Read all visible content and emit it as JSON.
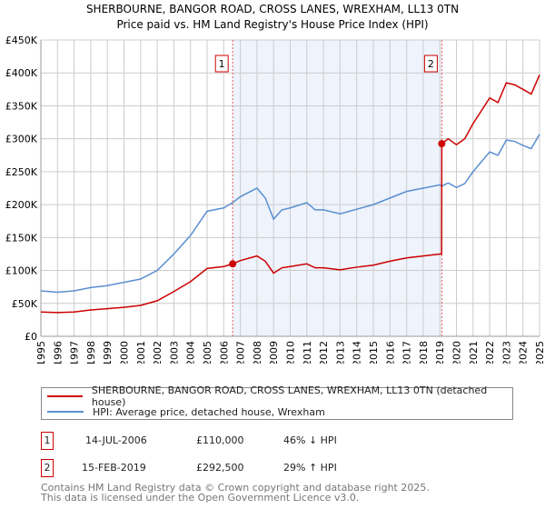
{
  "chart_data": {
    "type": "line",
    "title": "SHERBOURNE, BANGOR ROAD, CROSS LANES, WREXHAM, LL13 0TN",
    "subtitle": "Price paid vs. HM Land Registry's House Price Index (HPI)",
    "xlim": [
      1995,
      2025
    ],
    "ylim": [
      0,
      450000
    ],
    "y_ticks": [
      0,
      50000,
      100000,
      150000,
      200000,
      250000,
      300000,
      350000,
      400000,
      450000
    ],
    "y_tick_labels": [
      "£0",
      "£50K",
      "£100K",
      "£150K",
      "£200K",
      "£250K",
      "£300K",
      "£350K",
      "£400K",
      "£450K"
    ],
    "x_ticks": [
      "1995",
      "1996",
      "1997",
      "1998",
      "1999",
      "2000",
      "2001",
      "2002",
      "2003",
      "2004",
      "2005",
      "2006",
      "2007",
      "2008",
      "2009",
      "2010",
      "2011",
      "2012",
      "2013",
      "2014",
      "2015",
      "2016",
      "2017",
      "2018",
      "2019",
      "2020",
      "2021",
      "2022",
      "2023",
      "2024",
      "2025"
    ],
    "grid": true,
    "shaded_range": [
      2006.54,
      2019.12
    ],
    "series": [
      {
        "name": "SHERBOURNE, BANGOR ROAD, CROSS LANES, WREXHAM, LL13 0TN (detached house)",
        "color": "#cc0000",
        "x": [
          1995,
          1996,
          1997,
          1998,
          1999,
          2000,
          2001,
          2002,
          2003,
          2004,
          2005,
          2006,
          2006.54,
          2007,
          2008,
          2008.5,
          2009,
          2009.5,
          2010,
          2011,
          2011.5,
          2012,
          2013,
          2014,
          2015,
          2016,
          2017,
          2018,
          2019,
          2019.11,
          2019.12,
          2019.5,
          2020,
          2020.5,
          2021,
          2022,
          2022.5,
          2023,
          2023.5,
          2024,
          2024.5,
          2025
        ],
        "y": [
          37000,
          36000,
          37000,
          40000,
          42000,
          44000,
          47000,
          54000,
          68000,
          83000,
          103000,
          106000,
          110000,
          115000,
          122000,
          114000,
          96000,
          104000,
          106000,
          110000,
          104000,
          104000,
          101000,
          105000,
          108000,
          114000,
          119000,
          122000,
          125000,
          125000,
          292500,
          300000,
          291000,
          300000,
          323000,
          362000,
          355000,
          385000,
          382000,
          375000,
          368000,
          397000
        ]
      },
      {
        "name": "HPI: Average price, detached house, Wrexham",
        "color": "#5b8fd0",
        "x": [
          1995,
          1996,
          1997,
          1998,
          1999,
          2000,
          2001,
          2002,
          2003,
          2004,
          2005,
          2006,
          2006.54,
          2007,
          2008,
          2008.5,
          2009,
          2009.5,
          2010,
          2011,
          2011.5,
          2012,
          2013,
          2014,
          2015,
          2016,
          2017,
          2018,
          2019,
          2019.12,
          2019.5,
          2020,
          2020.5,
          2021,
          2022,
          2022.5,
          2023,
          2023.5,
          2024,
          2024.5,
          2025
        ],
        "y": [
          69000,
          67000,
          69000,
          74000,
          77000,
          82000,
          87000,
          100000,
          125000,
          153000,
          190000,
          195000,
          203000,
          212000,
          225000,
          210000,
          178000,
          192000,
          195000,
          203000,
          192000,
          192000,
          186000,
          193000,
          200000,
          210000,
          220000,
          225000,
          230000,
          228000,
          233000,
          226000,
          232000,
          250000,
          280000,
          275000,
          298000,
          296000,
          290000,
          285000,
          307000
        ]
      }
    ],
    "annotations": [
      {
        "label": "1",
        "x": 2006.54,
        "y": 110000
      },
      {
        "label": "2",
        "x": 2019.12,
        "y": 292500
      }
    ]
  },
  "legend": {
    "red": "SHERBOURNE, BANGOR ROAD, CROSS LANES, WREXHAM, LL13 0TN (detached house)",
    "blue": "HPI: Average price, detached house, Wrexham"
  },
  "sales": [
    {
      "num": "1",
      "date": "14-JUL-2006",
      "price": "£110,000",
      "hpi": "46% ↓ HPI"
    },
    {
      "num": "2",
      "date": "15-FEB-2019",
      "price": "£292,500",
      "hpi": "29% ↑ HPI"
    }
  ],
  "footer": {
    "line1": "Contains HM Land Registry data © Crown copyright and database right 2025.",
    "line2": "This data is licensed under the Open Government Licence v3.0."
  }
}
